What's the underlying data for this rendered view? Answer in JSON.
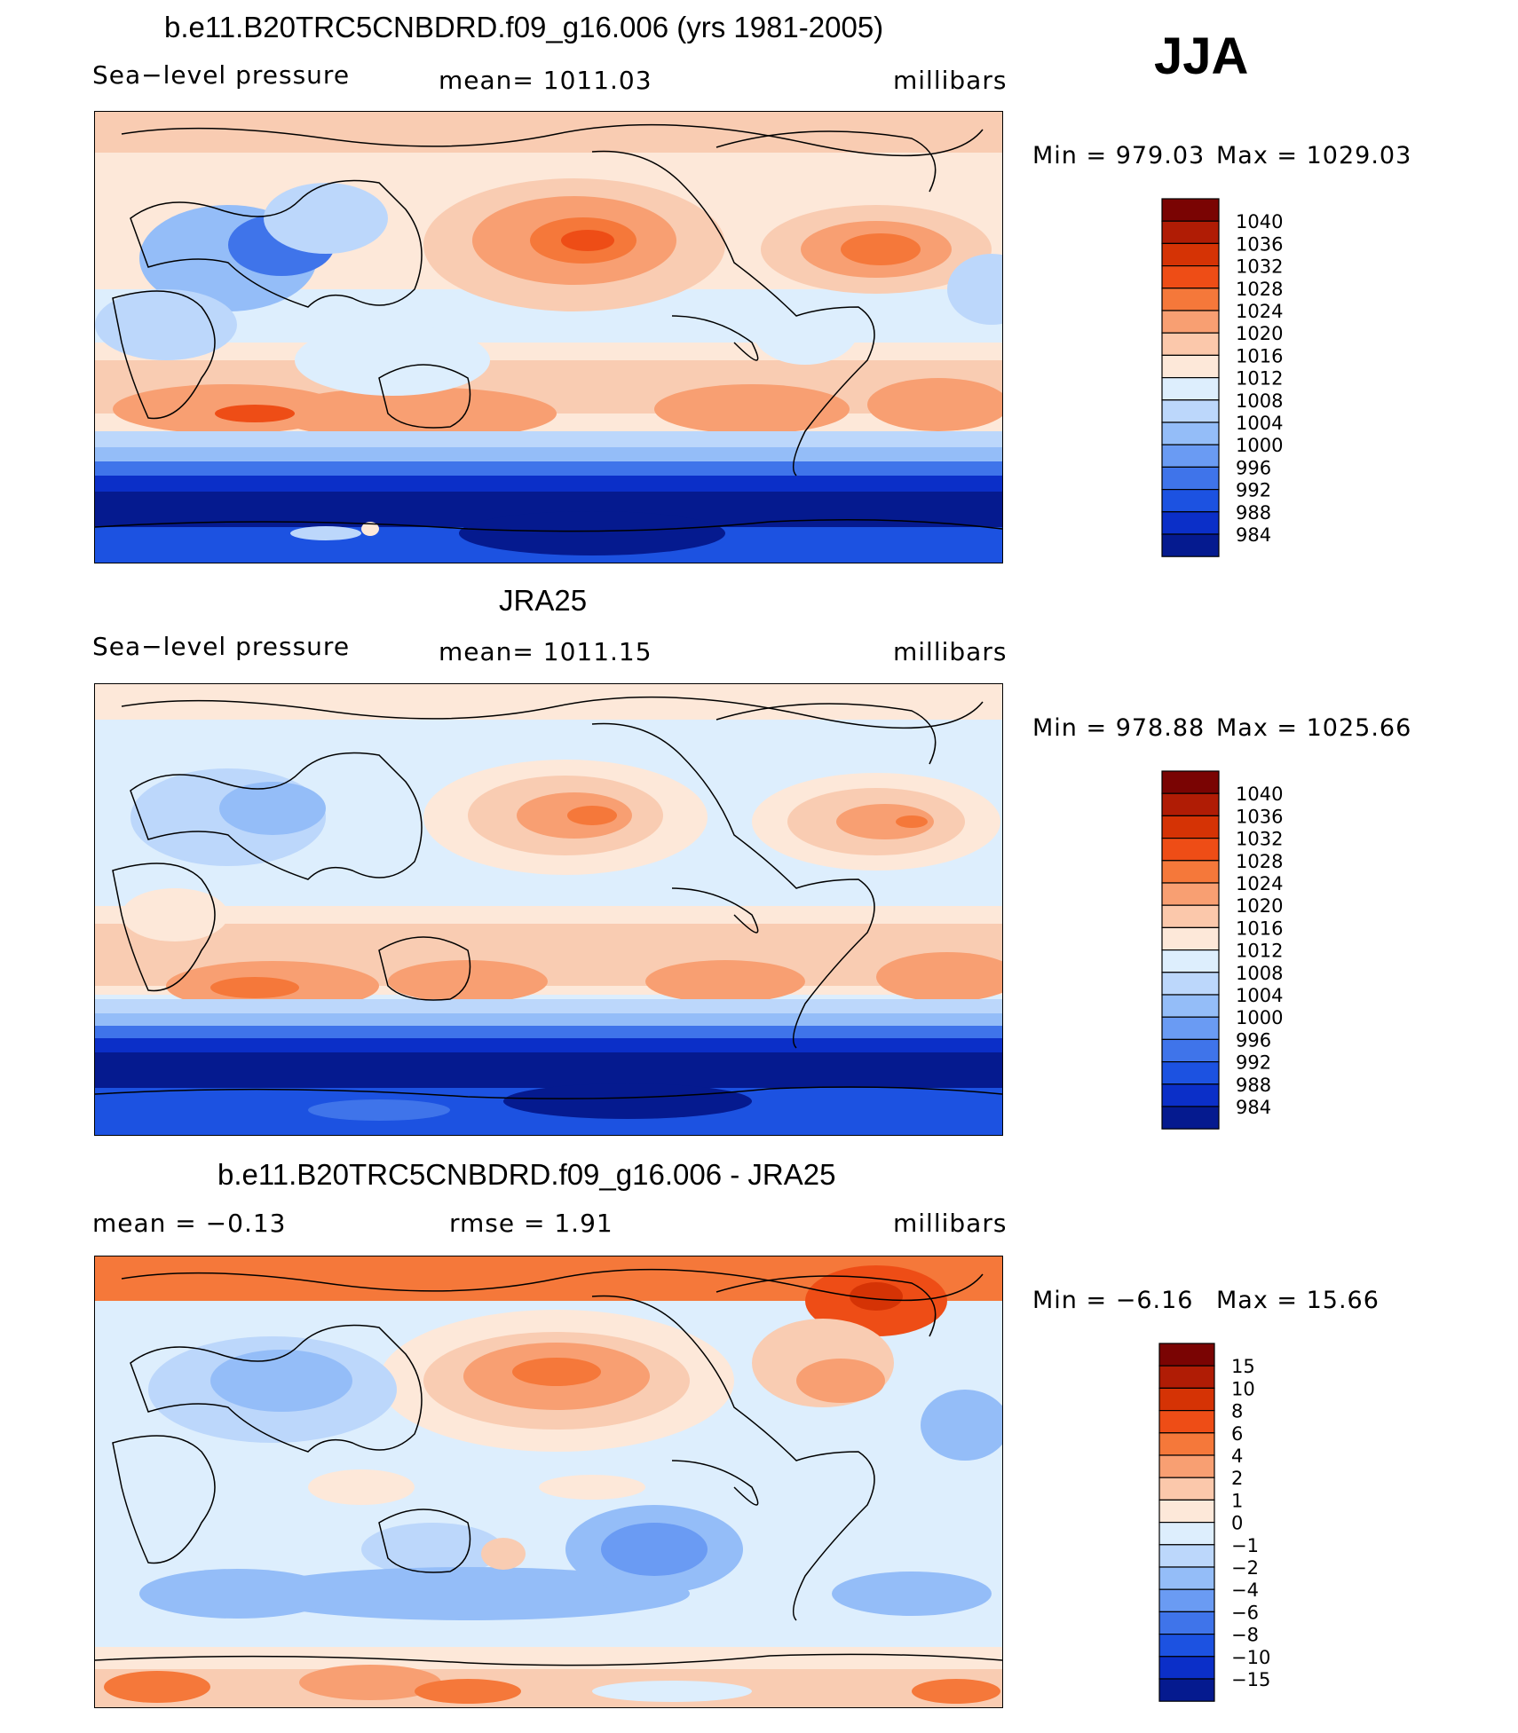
{
  "season": "JJA",
  "colors": {
    "abs": [
      "#7a0403",
      "#b01c05",
      "#d53305",
      "#ee4d16",
      "#f5783a",
      "#f89f72",
      "#fbc8ab",
      "#fde8d9",
      "#ddeefd",
      "#bcd7fb",
      "#94bdf8",
      "#6a9bf3",
      "#3f74ea",
      "#1c52e1",
      "#0b2fc8",
      "#051a8f"
    ],
    "diff": [
      "#7a0403",
      "#b01c05",
      "#d53305",
      "#ee4d16",
      "#f5783a",
      "#f89f72",
      "#fbc8ab",
      "#fde8d9",
      "#ddeefd",
      "#bcd7fb",
      "#94bdf8",
      "#6a9bf3",
      "#3f74ea",
      "#1c52e1",
      "#0b2fc8",
      "#051a8f"
    ]
  },
  "panels": [
    {
      "title": "b.e11.B20TRC5CNBDRD.f09_g16.006 (yrs 1981-2005)",
      "left": "Sea−level pressure",
      "center": "mean=  1011.03",
      "right": "millibars",
      "min_label": "Min  =  979.03",
      "max_label": "Max  =  1029.03"
    },
    {
      "title": "JRA25",
      "left": "Sea−level pressure",
      "center": "mean=  1011.15",
      "right": "millibars",
      "min_label": "Min  =  978.88",
      "max_label": "Max  =  1025.66"
    },
    {
      "title": "b.e11.B20TRC5CNBDRD.f09_g16.006 - JRA25",
      "left": "mean  =    −0.13",
      "center": "rmse  =     1.91",
      "right": "millibars",
      "min_label": "Min  =    −6.16",
      "max_label": "Max  =    15.66"
    }
  ],
  "chart_data": [
    {
      "type": "heatmap",
      "title": "b.e11.B20TRC5CNBDRD.f09_g16.006 (yrs 1981-2005)",
      "variable": "Sea-level pressure",
      "units": "millibars",
      "mean": 1011.03,
      "min": 979.03,
      "max": 1029.03,
      "colorbar_levels": [
        "1040",
        "1036",
        "1032",
        "1028",
        "1024",
        "1020",
        "1016",
        "1012",
        "1008",
        "1004",
        "1000",
        "996",
        "992",
        "988",
        "984"
      ]
    },
    {
      "type": "heatmap",
      "title": "JRA25",
      "variable": "Sea-level pressure",
      "units": "millibars",
      "mean": 1011.15,
      "min": 978.88,
      "max": 1025.66,
      "colorbar_levels": [
        "1040",
        "1036",
        "1032",
        "1028",
        "1024",
        "1020",
        "1016",
        "1012",
        "1008",
        "1004",
        "1000",
        "996",
        "992",
        "988",
        "984"
      ]
    },
    {
      "type": "heatmap",
      "title": "b.e11.B20TRC5CNBDRD.f09_g16.006 - JRA25",
      "units": "millibars",
      "mean": -0.13,
      "rmse": 1.91,
      "min": -6.16,
      "max": 15.66,
      "colorbar_levels": [
        "15",
        "10",
        "8",
        "6",
        "4",
        "2",
        "1",
        "0",
        "−1",
        "−2",
        "−4",
        "−6",
        "−8",
        "−10",
        "−15"
      ]
    }
  ]
}
